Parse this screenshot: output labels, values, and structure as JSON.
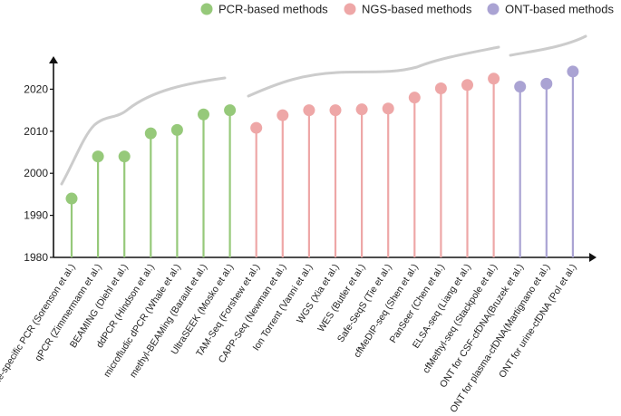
{
  "chart_data": {
    "type": "lollipop",
    "title": "",
    "xlabel": "",
    "ylabel": "",
    "ylim": [
      1980,
      2025
    ],
    "yticks": [
      1980,
      1990,
      2000,
      2010,
      2020
    ],
    "colors": {
      "pcr": "#96c97a",
      "ngs": "#eea7a7",
      "ont": "#aaa3d3",
      "axis": "#111111",
      "trend": "#cccccc"
    },
    "legend": [
      {
        "key": "pcr",
        "label": "PCR-based methods"
      },
      {
        "key": "ngs",
        "label": "NGS-based methods"
      },
      {
        "key": "ont",
        "label": "ONT-based methods"
      }
    ],
    "categories": [
      {
        "label": "allele-specific PCR (Sorenson et al.)",
        "year": 1994,
        "group": "pcr"
      },
      {
        "label": "qPCR (Zimmermann et al.)",
        "year": 2004,
        "group": "pcr"
      },
      {
        "label": "BEAMING (Diehl et al.)",
        "year": 2004,
        "group": "pcr"
      },
      {
        "label": "ddPCR (Hindson et al.)",
        "year": 2009.5,
        "group": "pcr"
      },
      {
        "label": "microfludic dPCR (Whale et al.)",
        "year": 2010.3,
        "group": "pcr"
      },
      {
        "label": "methyl-BEAMing (Barault et al.)",
        "year": 2014,
        "group": "pcr"
      },
      {
        "label": "UltraSEEK (Mosko et al.)",
        "year": 2015,
        "group": "pcr"
      },
      {
        "label": "TAM-Seq (Forshew et al.)",
        "year": 2010.8,
        "group": "ngs"
      },
      {
        "label": "CAPP-Seq (Newman et al.)",
        "year": 2013.8,
        "group": "ngs"
      },
      {
        "label": "Ion Torrent (Vanni et al.)",
        "year": 2015,
        "group": "ngs"
      },
      {
        "label": "WGS (Xia et al.)",
        "year": 2015,
        "group": "ngs"
      },
      {
        "label": "WES (Butler et al.)",
        "year": 2015.2,
        "group": "ngs"
      },
      {
        "label": "Safe-SeqS (Tie et al.)",
        "year": 2015.4,
        "group": "ngs"
      },
      {
        "label": "cfMeDIP-seq (Shen et al.)",
        "year": 2018,
        "group": "ngs"
      },
      {
        "label": "PanSeer (Chen et al.)",
        "year": 2020.2,
        "group": "ngs"
      },
      {
        "label": "ELSA-seq (Liang et al.)",
        "year": 2021,
        "group": "ngs"
      },
      {
        "label": "cfMethyl-seq (Stackpole et al.)",
        "year": 2022.5,
        "group": "ngs"
      },
      {
        "label": "ONT for CSF-cfDNA(Bruzek et al.)",
        "year": 2020.6,
        "group": "ont"
      },
      {
        "label": "ONT for plasma-cfDNA(Martignano et al.)",
        "year": 2021.3,
        "group": "ont"
      },
      {
        "label": "ONT for urine-cfDNA (Pol et al.)",
        "year": 2024.2,
        "group": "ont"
      }
    ]
  }
}
